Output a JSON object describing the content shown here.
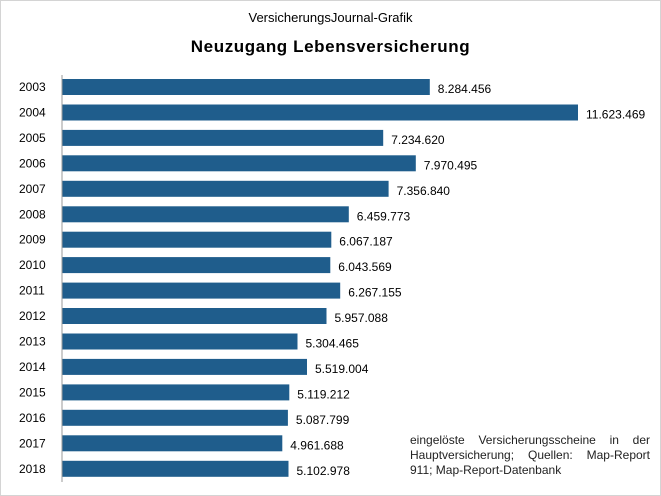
{
  "header": {
    "supertitle": "VersicherungsJournal-Grafik"
  },
  "chart_data": {
    "type": "bar",
    "orientation": "horizontal",
    "title": "Neuzugang  Lebensversicherung",
    "xlabel": "",
    "ylabel": "",
    "categories": [
      "2003",
      "2004",
      "2005",
      "2006",
      "2007",
      "2008",
      "2009",
      "2010",
      "2011",
      "2012",
      "2013",
      "2014",
      "2015",
      "2016",
      "2017",
      "2018"
    ],
    "values": [
      8284456,
      11623469,
      7234620,
      7970495,
      7356840,
      6459773,
      6067187,
      6043569,
      6267155,
      5957088,
      5304465,
      5519004,
      5119212,
      5087799,
      4961688,
      5102978
    ],
    "data_labels": [
      "8.284.456",
      "11.623.469",
      "7.234.620",
      "7.970.495",
      "7.356.840",
      "6.459.773",
      "6.067.187",
      "6.043.569",
      "6.267.155",
      "5.957.088",
      "5.304.465",
      "5.519.004",
      "5.119.212",
      "5.087.799",
      "4.961.688",
      "5.102.978"
    ],
    "xlim": [
      0,
      11623469
    ],
    "grid": false,
    "legend": "none",
    "bar_color": "#1f5d8c",
    "note": "eingelöste Versicherungsscheine in der Hauptversicherung; Quellen: Map-Report 911; Map-Report-Datenbank"
  }
}
